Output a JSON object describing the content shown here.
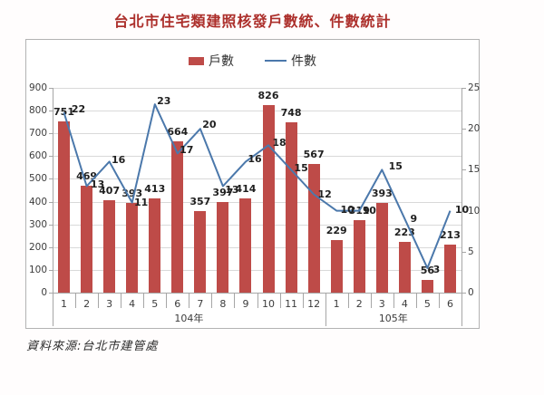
{
  "title": "台北市住宅類建照核發戶數統、件數統計",
  "source_note": "資料來源:台北市建管處",
  "chart_data": {
    "type": "bar+line combo",
    "title": "台北市住宅類建照核發戶數統、件數統計",
    "categories": [
      "1",
      "2",
      "3",
      "4",
      "5",
      "6",
      "7",
      "8",
      "9",
      "10",
      "11",
      "12",
      "1",
      "2",
      "3",
      "4",
      "5",
      "6"
    ],
    "groups": [
      {
        "label": "104年",
        "span": 12
      },
      {
        "label": "105年",
        "span": 6
      }
    ],
    "series": [
      {
        "name": "戶數",
        "type": "bar",
        "axis": "left",
        "color": "#be4b48",
        "values": [
          751,
          469,
          407,
          393,
          413,
          664,
          357,
          397,
          414,
          826,
          748,
          567,
          229,
          319,
          393,
          223,
          56,
          213
        ]
      },
      {
        "name": "件數",
        "type": "line",
        "axis": "right",
        "color": "#4b78ab",
        "values": [
          22,
          13,
          16,
          11,
          23,
          17,
          20,
          13,
          16,
          18,
          15,
          12,
          10,
          10,
          15,
          9,
          3,
          10
        ]
      }
    ],
    "left_axis": {
      "min": 0,
      "max": 900,
      "step": 100,
      "ticks": [
        0,
        100,
        200,
        300,
        400,
        500,
        600,
        700,
        800,
        900
      ]
    },
    "right_axis": {
      "min": 0,
      "max": 25,
      "step": 5,
      "ticks": [
        0,
        5,
        10,
        15,
        20,
        25
      ]
    },
    "grid": true,
    "legend_position": "top-center",
    "data_labels": true
  }
}
